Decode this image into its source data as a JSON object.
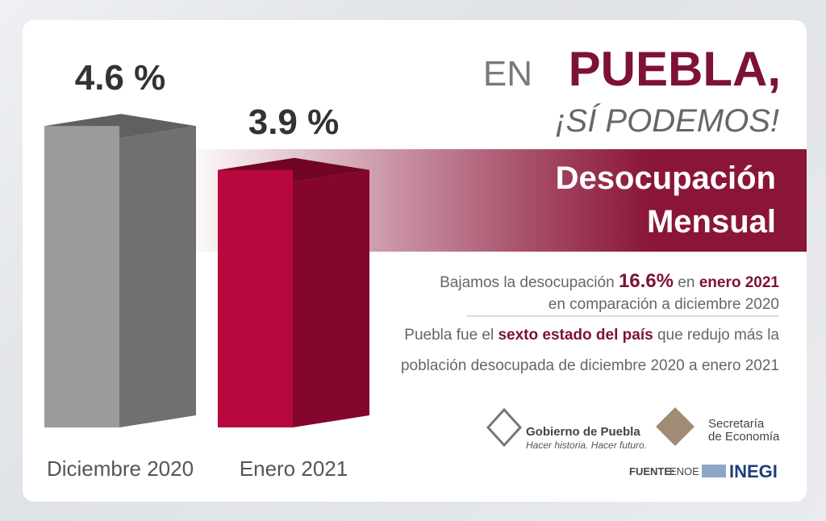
{
  "chart_data": {
    "type": "bar",
    "title": [
      "Desocupación",
      "Mensual"
    ],
    "categories": [
      "Diciembre 2020",
      "Enero 2021"
    ],
    "values": [
      4.6,
      3.9
    ],
    "value_labels": [
      "4.6 %",
      "3.9 %"
    ],
    "colors": [
      "#9b9b9b",
      "#b8083d"
    ]
  },
  "header": {
    "lead": "EN",
    "title": "PUEBLA,",
    "slogan": "¡SÍ PODEMOS!"
  },
  "notes": [
    [
      [
        "Bajamos la desocupación ",
        false
      ],
      [
        "16.6%",
        true
      ],
      [
        " en ",
        false
      ],
      [
        "enero 2021",
        true
      ]
    ],
    [
      [
        "en comparación a diciembre 2020",
        false
      ]
    ],
    [
      [
        "Puebla fue el ",
        false
      ],
      [
        "sexto estado del país",
        true
      ],
      [
        " que redujo más la",
        false
      ]
    ],
    [
      [
        "población desocupada de diciembre 2020 a enero 2021",
        false
      ]
    ]
  ],
  "footer": {
    "government": [
      "Gobierno de Puebla",
      "Hacer historia. Hacer futuro."
    ],
    "ministry": [
      "Secretaría",
      "de Economía"
    ],
    "source_label": "FUENTE:",
    "source": "ENOE",
    "agency": "INEGI"
  }
}
